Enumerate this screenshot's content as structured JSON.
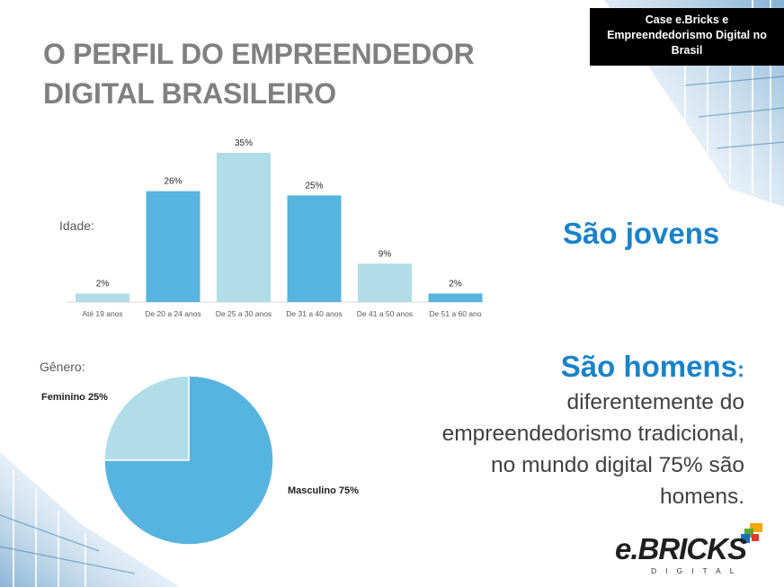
{
  "slide": {
    "title_line1": "O PERFIL DO EMPREENDEDOR",
    "title_line2": "DIGITAL BRASILEIRO",
    "badge": {
      "line1": "Case e.Bricks e",
      "line2": "Empreendedorismo Digital no",
      "line3": "Brasil"
    },
    "age_label": "Idade:",
    "gender_label": "Gênero:",
    "headline_young": "São jovens",
    "headline_men": "São homens",
    "headline_men_colon": ":",
    "body_lines": [
      "diferentemente do",
      "empreendedorismo tradicional,",
      "no mundo digital 75% são",
      "homens."
    ],
    "logo_text": "e.BRICKS",
    "logo_sub": "DIGITAL"
  },
  "colors": {
    "bar_dark": "#57b4df",
    "bar_light": "#b0dde7",
    "pie_dark": "#57b4df",
    "pie_light": "#b0dde7",
    "headline": "#1a82c9",
    "title": "#808080"
  },
  "chart_data": [
    {
      "type": "bar",
      "categories": [
        "Até 19 anos",
        "De 20 a 24 anos",
        "De 25 a 30 anos",
        "De 31 a 40 anos",
        "De 41 a 50 anos",
        "De 51 a 60 ano"
      ],
      "values": [
        2,
        26,
        35,
        25,
        9,
        2
      ],
      "data_labels": [
        "2%",
        "26%",
        "35%",
        "25%",
        "9%",
        "2%"
      ],
      "bar_colors": [
        "light",
        "dark",
        "light",
        "dark",
        "light",
        "dark"
      ],
      "ylim": [
        0,
        35
      ],
      "grid": false
    },
    {
      "type": "pie",
      "labels": [
        "Feminino 25%",
        "Masculino 75%"
      ],
      "values": [
        25,
        75
      ],
      "slice_colors": [
        "light",
        "dark"
      ]
    }
  ]
}
